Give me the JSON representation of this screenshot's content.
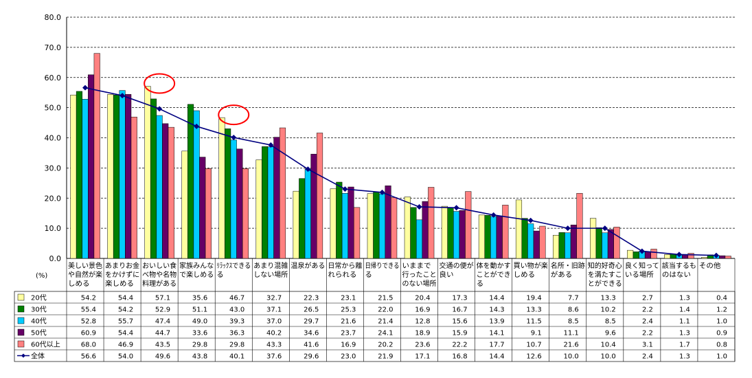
{
  "chart_data": {
    "type": "bar",
    "unit_label": "(%)",
    "ylim": [
      0,
      80
    ],
    "yticks": [
      "0.0",
      "10.0",
      "20.0",
      "30.0",
      "40.0",
      "50.0",
      "60.0",
      "70.0",
      "80.0"
    ],
    "grid": true,
    "categories": [
      [
        "美しい景色",
        "や自然が楽",
        "しめる"
      ],
      [
        "あまりお金",
        "をかけずに",
        "楽しめる"
      ],
      [
        "おいしい食",
        "べ物や名物",
        "料理がある"
      ],
      [
        "家族みんな",
        "で楽しめる"
      ],
      [
        "ﾘﾗｯｸｽできる",
        "る"
      ],
      [
        "あまり混雑",
        "しない場所"
      ],
      [
        "温泉がある"
      ],
      [
        "日常から離",
        "れられる"
      ],
      [
        "日帰りできる",
        "る"
      ],
      [
        "いままで",
        "行ったこと",
        "のない場所"
      ],
      [
        "交通の便が",
        "良い"
      ],
      [
        "体を動かす",
        "ことができ",
        "る"
      ],
      [
        "買い物が楽",
        "しめる"
      ],
      [
        "名所・旧跡",
        "がある"
      ],
      [
        "知的好奇心",
        "を満たすこ",
        "とができる"
      ],
      [
        "良く知って",
        "いる場所"
      ],
      [
        "該当するも",
        "のはない"
      ],
      [
        "その他"
      ]
    ],
    "series": [
      {
        "name": "20代",
        "color": "#ffffa0",
        "values": [
          54.2,
          54.4,
          57.1,
          35.6,
          46.7,
          32.7,
          22.3,
          23.1,
          21.5,
          20.4,
          17.3,
          14.4,
          19.4,
          7.7,
          13.3,
          2.7,
          1.3,
          0.4
        ],
        "labels": [
          "54.2",
          "54.4",
          "57.1",
          "35.6",
          "46.7",
          "32.7",
          "22.3",
          "23.1",
          "21.5",
          "20.4",
          "17.3",
          "14.4",
          "19.4",
          "7.7",
          "13.3",
          "2.7",
          "1.3",
          "0.4"
        ]
      },
      {
        "name": "30代",
        "color": "#008000",
        "values": [
          55.4,
          54.2,
          52.9,
          51.1,
          43.0,
          37.1,
          26.5,
          25.3,
          22.0,
          16.9,
          16.7,
          14.3,
          13.3,
          8.6,
          10.2,
          2.2,
          1.4,
          1.2
        ],
        "labels": [
          "55.4",
          "54.2",
          "52.9",
          "51.1",
          "43.0",
          "37.1",
          "26.5",
          "25.3",
          "22.0",
          "16.9",
          "16.7",
          "14.3",
          "13.3",
          "8.6",
          "10.2",
          "2.2",
          "1.4",
          "1.2"
        ]
      },
      {
        "name": "40代",
        "color": "#00ccff",
        "values": [
          52.8,
          55.7,
          47.4,
          49.0,
          39.3,
          37.0,
          29.7,
          21.6,
          21.4,
          12.8,
          15.6,
          13.9,
          11.5,
          8.5,
          8.5,
          2.4,
          1.1,
          1.0
        ],
        "labels": [
          "52.8",
          "55.7",
          "47.4",
          "49.0",
          "39.3",
          "37.0",
          "29.7",
          "21.6",
          "21.4",
          "12.8",
          "15.6",
          "13.9",
          "11.5",
          "8.5",
          "8.5",
          "2.4",
          "1.1",
          "1.0"
        ]
      },
      {
        "name": "50代",
        "color": "#660066",
        "values": [
          60.9,
          54.4,
          44.7,
          33.6,
          36.3,
          40.2,
          34.6,
          23.7,
          24.1,
          18.9,
          15.9,
          14.1,
          9.1,
          11.1,
          9.6,
          2.2,
          1.3,
          0.9
        ],
        "labels": [
          "60.9",
          "54.4",
          "44.7",
          "33.6",
          "36.3",
          "40.2",
          "34.6",
          "23.7",
          "24.1",
          "18.9",
          "15.9",
          "14.1",
          "9.1",
          "11.1",
          "9.6",
          "2.2",
          "1.3",
          "0.9"
        ]
      },
      {
        "name": "60代以上",
        "color": "#ff8080",
        "values": [
          68.0,
          46.9,
          43.5,
          29.8,
          29.8,
          43.3,
          41.6,
          16.9,
          20.2,
          23.6,
          22.2,
          17.7,
          10.7,
          21.6,
          10.4,
          3.1,
          1.7,
          0.8
        ],
        "labels": [
          "68.0",
          "46.9",
          "43.5",
          "29.8",
          "29.8",
          "43.3",
          "41.6",
          "16.9",
          "20.2",
          "23.6",
          "22.2",
          "17.7",
          "10.7",
          "21.6",
          "10.4",
          "3.1",
          "1.7",
          "0.8"
        ]
      }
    ],
    "line": {
      "name": "全体",
      "color": "#000080",
      "values": [
        56.6,
        54.0,
        49.6,
        43.8,
        40.1,
        37.6,
        29.6,
        23.0,
        21.9,
        17.1,
        16.8,
        14.4,
        12.6,
        10.0,
        10.0,
        2.4,
        1.3,
        1.0
      ],
      "labels": [
        "56.6",
        "54.0",
        "49.6",
        "43.8",
        "40.1",
        "37.6",
        "29.6",
        "23.0",
        "21.9",
        "17.1",
        "16.8",
        "14.4",
        "12.6",
        "10.0",
        "10.0",
        "2.4",
        "1.3",
        "1.0"
      ]
    },
    "highlight_circles": [
      2,
      4
    ],
    "highlight_color": "#ff0000"
  }
}
